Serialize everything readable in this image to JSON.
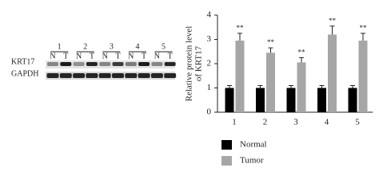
{
  "blot": {
    "samples": [
      "1",
      "2",
      "3",
      "4",
      "5"
    ],
    "lanes": [
      "N",
      "T",
      "N",
      "T",
      "N",
      "T",
      "N",
      "T",
      "N",
      "T"
    ],
    "rows": [
      "KRT17",
      "GAPDH"
    ]
  },
  "chart_data": {
    "type": "bar",
    "y_label": [
      "Relative protein level",
      "of KRT17"
    ],
    "categories": [
      "1",
      "2",
      "3",
      "4",
      "5"
    ],
    "series": [
      {
        "name": "Normal",
        "color": "#000000",
        "values": [
          1,
          1,
          1,
          1,
          1
        ],
        "errors": [
          0.1,
          0.1,
          0.1,
          0.1,
          0.1
        ]
      },
      {
        "name": "Tumor",
        "color": "#a6a6a6",
        "values": [
          2.95,
          2.45,
          2.05,
          3.2,
          2.95
        ],
        "errors": [
          0.3,
          0.2,
          0.2,
          0.35,
          0.3
        ]
      }
    ],
    "annotations": [
      "**",
      "**",
      "**",
      "**",
      "**"
    ],
    "ylim": [
      0,
      4
    ],
    "yticks": [
      0,
      1,
      2,
      3,
      4
    ],
    "grid": false,
    "legend": "bottom"
  }
}
